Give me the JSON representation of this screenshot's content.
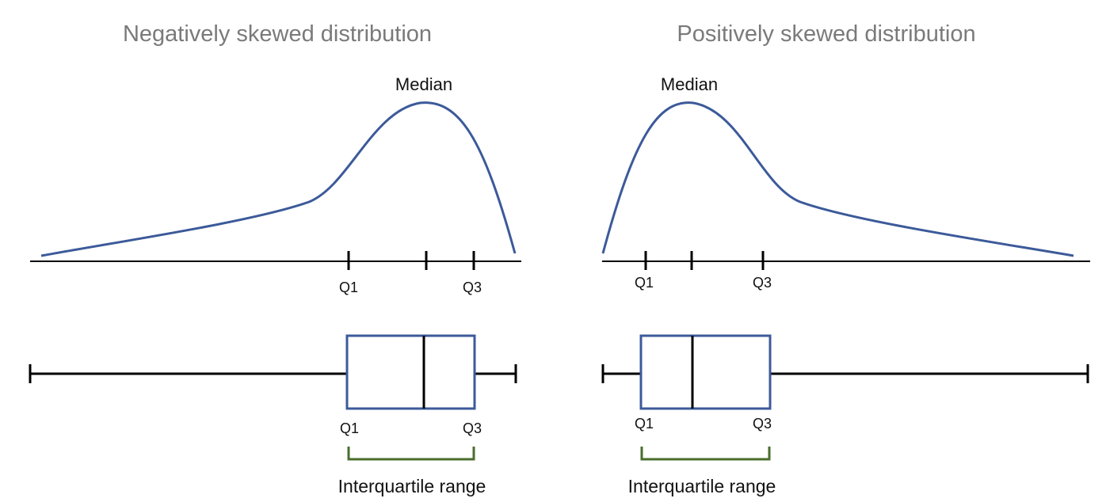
{
  "colors": {
    "curve": "#3c5a9a",
    "box": "#3c5a9a",
    "bracket": "#4a6e2e",
    "line": "#000000",
    "title": "#7a7a7a"
  },
  "panels": [
    {
      "id": "negative",
      "title": "Negatively skewed distribution",
      "median_label": "Median",
      "q1_label": "Q1",
      "q3_label": "Q3",
      "iqr_label": "Interquartile range"
    },
    {
      "id": "positive",
      "title": "Positively skewed distribution",
      "median_label": "Median",
      "q1_label": "Q1",
      "q3_label": "Q3",
      "iqr_label": "Interquartile range"
    }
  ]
}
